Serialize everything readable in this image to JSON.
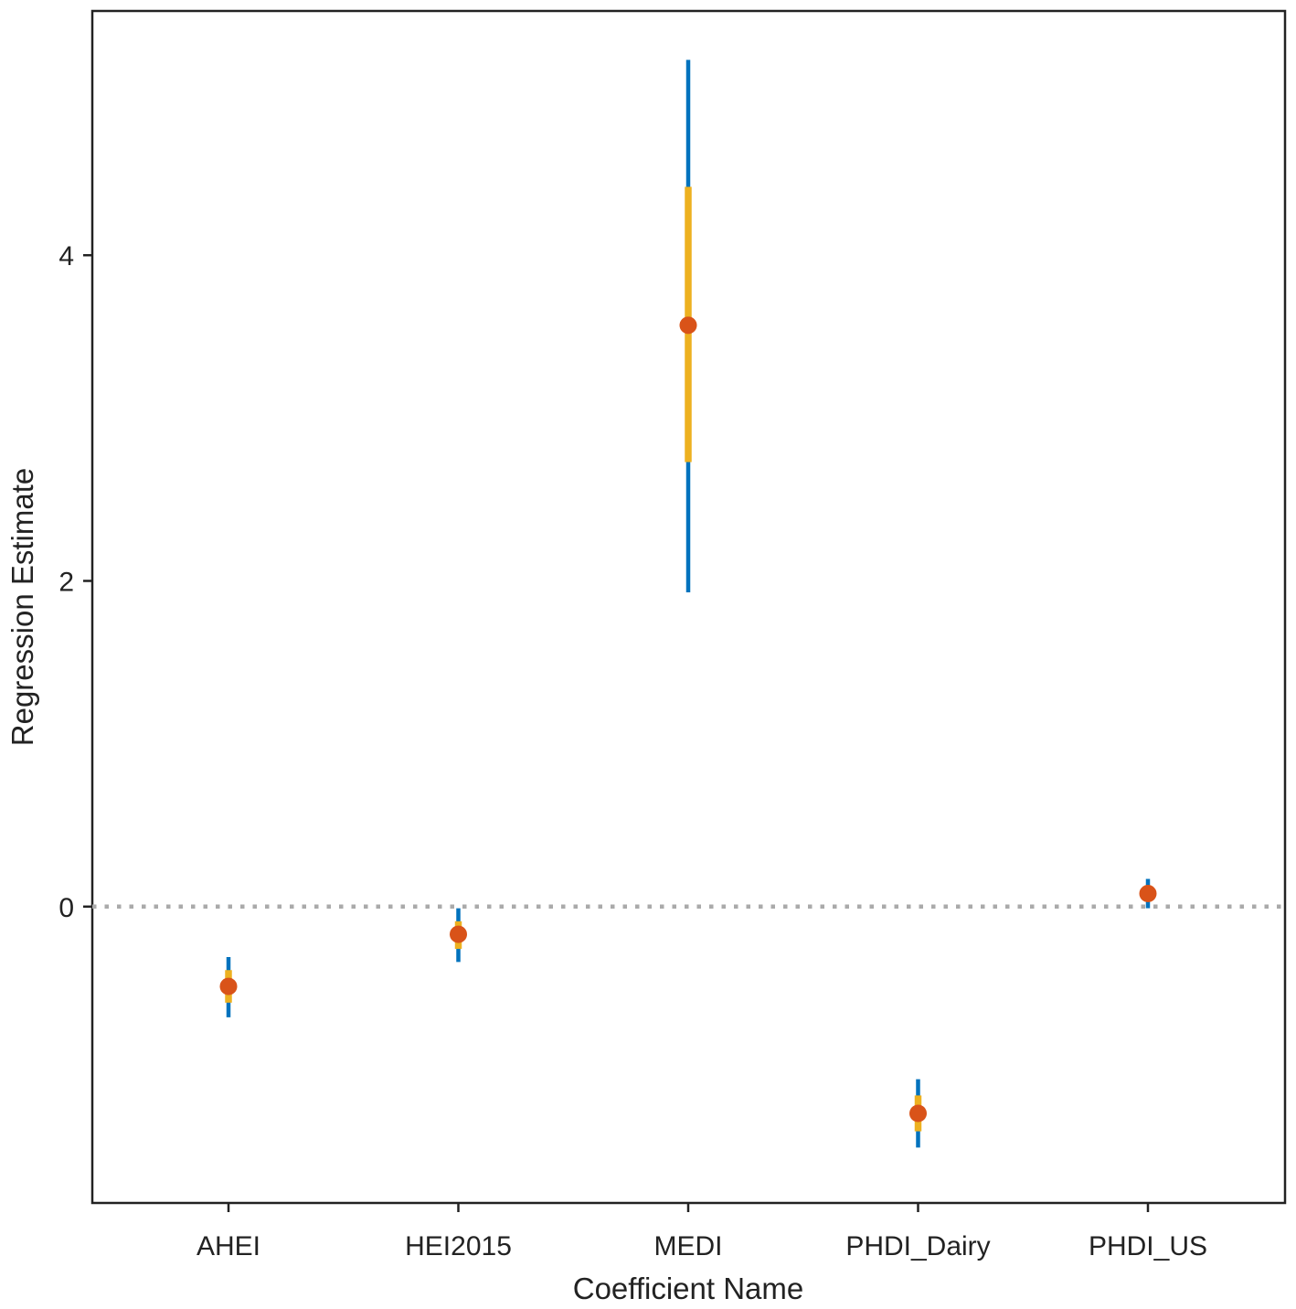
{
  "chart_data": {
    "type": "pointrange",
    "title": "",
    "xlabel": "Coefficient Name",
    "ylabel": "Regression Estimate",
    "categories": [
      "AHEI",
      "HEI2015",
      "MEDI",
      "PHDI_Dairy",
      "PHDI_US"
    ],
    "ylim": [
      -1.82,
      5.5
    ],
    "yticks": [
      0,
      2,
      4
    ],
    "reference_line": 0,
    "grid": false,
    "legend": "none",
    "points": [
      {
        "category": "AHEI",
        "estimate": -0.49,
        "inner_low": -0.59,
        "inner_high": -0.39,
        "outer_low": -0.68,
        "outer_high": -0.31
      },
      {
        "category": "HEI2015",
        "estimate": -0.17,
        "inner_low": -0.26,
        "inner_high": -0.09,
        "outer_low": -0.34,
        "outer_high": -0.01
      },
      {
        "category": "MEDI",
        "estimate": 3.57,
        "inner_low": 2.73,
        "inner_high": 4.42,
        "outer_low": 1.93,
        "outer_high": 5.2
      },
      {
        "category": "PHDI_Dairy",
        "estimate": -1.27,
        "inner_low": -1.38,
        "inner_high": -1.16,
        "outer_low": -1.48,
        "outer_high": -1.06
      },
      {
        "category": "PHDI_US",
        "estimate": 0.08,
        "inner_low": 0.03,
        "inner_high": 0.13,
        "outer_low": -0.01,
        "outer_high": 0.17
      }
    ],
    "colors": {
      "outer_interval": "#0072BD",
      "inner_interval": "#EDB120",
      "point": "#D95319",
      "reference_line": "#AAAAAA",
      "axis": "#222222"
    }
  }
}
